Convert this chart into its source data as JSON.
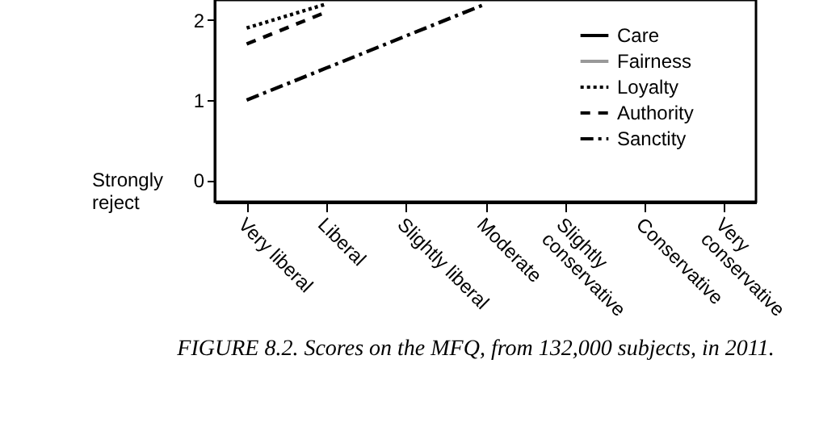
{
  "chart_data": {
    "type": "line",
    "categories": [
      "Very liberal",
      "Liberal",
      "Slightly liberal",
      "Moderate",
      "Slightly conservative",
      "Conservative",
      "Very conservative"
    ],
    "series": [
      {
        "name": "Care",
        "color": "#000000",
        "line_style": "solid",
        "values": [
          null,
          null,
          null,
          null,
          null,
          null,
          null
        ]
      },
      {
        "name": "Fairness",
        "color": "#999999",
        "line_style": "solid",
        "values": [
          null,
          null,
          null,
          null,
          null,
          null,
          null
        ]
      },
      {
        "name": "Loyalty",
        "color": "#000000",
        "line_style": "dotted",
        "values": [
          1.9,
          2.2,
          null,
          null,
          null,
          null,
          null
        ]
      },
      {
        "name": "Authority",
        "color": "#000000",
        "line_style": "dashed",
        "values": [
          1.7,
          2.1,
          null,
          null,
          null,
          null,
          null
        ]
      },
      {
        "name": "Sanctity",
        "color": "#000000",
        "line_style": "dashdot",
        "values": [
          1.0,
          1.4,
          1.8,
          2.2,
          null,
          null,
          null
        ]
      }
    ],
    "ylim": [
      -0.27,
      2.25
    ],
    "yticks": [
      0,
      1,
      2
    ],
    "annotations": [
      "Strongly reject",
      "FIGURE 8.2. Scores on the MFQ, from 132,000 subjects, in 2011."
    ],
    "legend": "top right",
    "grid": false,
    "marker": "none"
  }
}
